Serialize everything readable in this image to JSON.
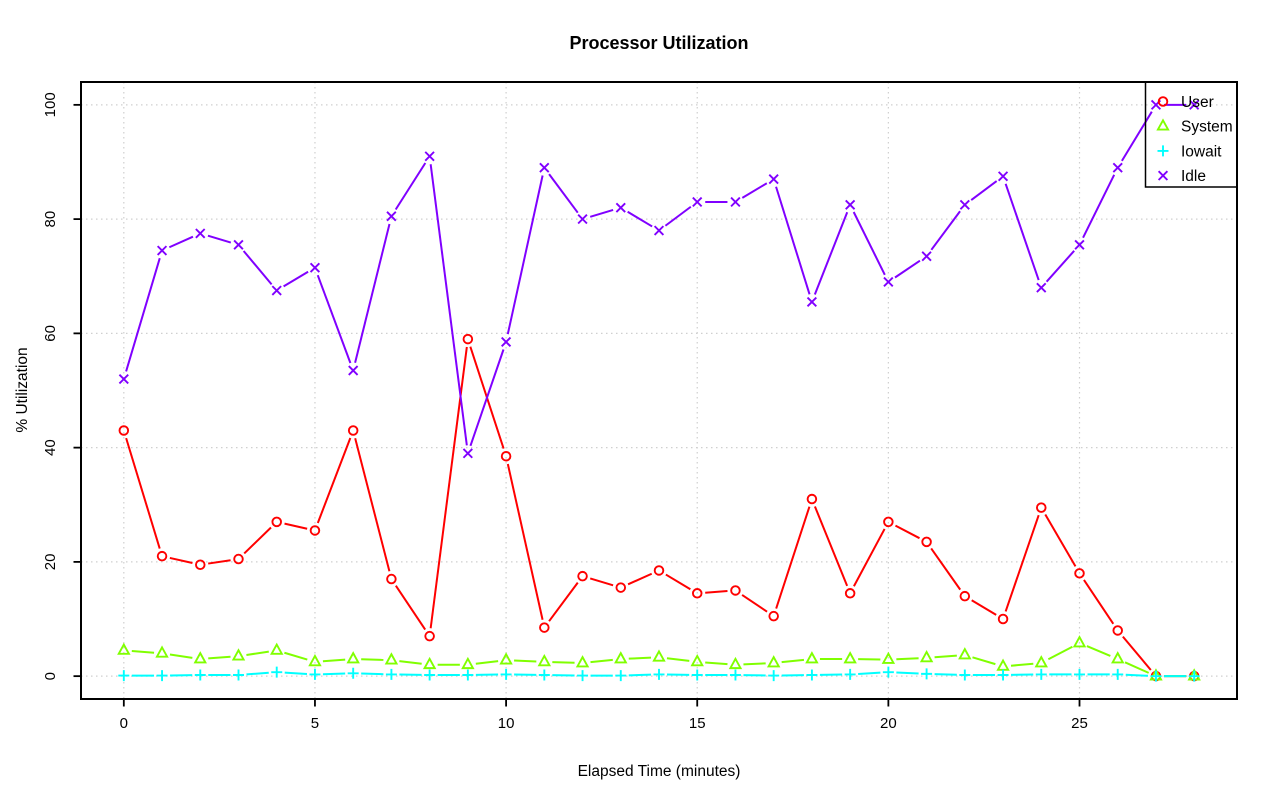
{
  "title": "Processor Utilization",
  "chart_data": {
    "type": "line",
    "title": "Processor Utilization",
    "xlabel": "Elapsed Time (minutes)",
    "ylabel": "% Utilization",
    "xlim": [
      0,
      28
    ],
    "ylim": [
      0,
      100
    ],
    "x_ticks": [
      0,
      5,
      10,
      15,
      20,
      25
    ],
    "y_ticks": [
      0,
      20,
      40,
      60,
      80,
      100
    ],
    "grid": true,
    "grid_style": "dotted",
    "legend_position": "topright",
    "x": [
      0,
      1,
      2,
      3,
      4,
      5,
      6,
      7,
      8,
      9,
      10,
      11,
      12,
      13,
      14,
      15,
      16,
      17,
      18,
      19,
      20,
      21,
      22,
      23,
      24,
      25,
      26,
      27,
      28
    ],
    "series": [
      {
        "name": "User",
        "color": "#FF0000",
        "marker": "circle",
        "values": [
          43,
          21,
          19.5,
          20.5,
          27,
          25.5,
          43,
          17,
          7,
          59,
          38.5,
          8.5,
          17.5,
          15.5,
          18.5,
          14.5,
          15,
          10.5,
          31,
          14.5,
          27,
          23.5,
          14,
          10,
          29.5,
          18,
          8,
          0,
          0
        ]
      },
      {
        "name": "System",
        "color": "#80FF00",
        "marker": "triangle",
        "values": [
          4.5,
          4,
          3,
          3.5,
          4.5,
          2.5,
          3,
          2.8,
          2,
          2,
          2.8,
          2.5,
          2.3,
          3,
          3.3,
          2.5,
          2,
          2.3,
          3,
          3,
          2.9,
          3.2,
          3.7,
          1.7,
          2.3,
          5.8,
          3,
          0,
          0
        ]
      },
      {
        "name": "Iowait",
        "color": "#00FFFF",
        "marker": "plus",
        "values": [
          0.1,
          0.1,
          0.2,
          0.2,
          0.7,
          0.3,
          0.5,
          0.3,
          0.2,
          0.2,
          0.3,
          0.2,
          0.1,
          0.1,
          0.3,
          0.2,
          0.2,
          0.1,
          0.2,
          0.3,
          0.7,
          0.4,
          0.2,
          0.2,
          0.3,
          0.3,
          0.3,
          0,
          0
        ]
      },
      {
        "name": "Idle",
        "color": "#8000FF",
        "marker": "x",
        "values": [
          52,
          74.5,
          77.5,
          75.5,
          67.5,
          71.5,
          53.5,
          80.5,
          91,
          39,
          58.5,
          89,
          80,
          82,
          78,
          83,
          83,
          87,
          65.5,
          82.5,
          69,
          73.5,
          82.5,
          87.5,
          68,
          75.5,
          89,
          100,
          100
        ]
      }
    ]
  },
  "colors": {
    "grid": "#CFCFCF",
    "axis": "#000000",
    "background": "#FFFFFF"
  }
}
